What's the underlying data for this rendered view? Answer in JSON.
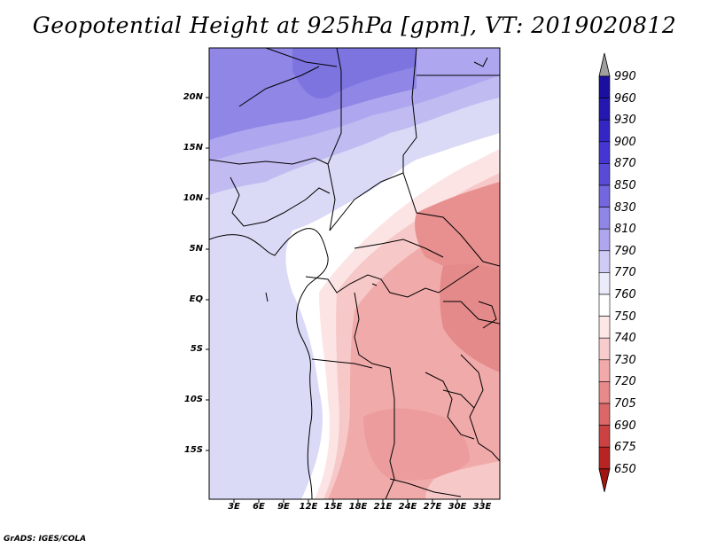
{
  "title": "Geopotential Height at 925hPa [gpm], VT: 2019020812",
  "credit": "GrADS: IGES/COLA",
  "map": {
    "variable": "Geopotential Height",
    "level": "925hPa",
    "units": "gpm",
    "valid_time": "2019020812",
    "lon_labels": [
      "3E",
      "6E",
      "9E",
      "12E",
      "15E",
      "18E",
      "21E",
      "24E",
      "27E",
      "30E",
      "33E"
    ],
    "lat_labels": [
      "20N",
      "15N",
      "10N",
      "5N",
      "EQ",
      "5S",
      "10S",
      "15S"
    ]
  },
  "colorbar": {
    "levels": [
      "990",
      "960",
      "930",
      "900",
      "870",
      "850",
      "830",
      "810",
      "790",
      "770",
      "760",
      "750",
      "740",
      "730",
      "720",
      "705",
      "690",
      "675",
      "650"
    ],
    "colors": [
      "#1a0f9e",
      "#2418b0",
      "#3326c4",
      "#4535d2",
      "#5a4ad8",
      "#7366de",
      "#8f86e6",
      "#aea7ef",
      "#cfcbf6",
      "#ebebfc",
      "#ffffff",
      "#fde6e6",
      "#f9cccc",
      "#f2a9a9",
      "#e88a8a",
      "#dc6767",
      "#cc4242",
      "#b82424",
      "#a01414"
    ],
    "top_arrow_color": "#a0a0a0"
  }
}
